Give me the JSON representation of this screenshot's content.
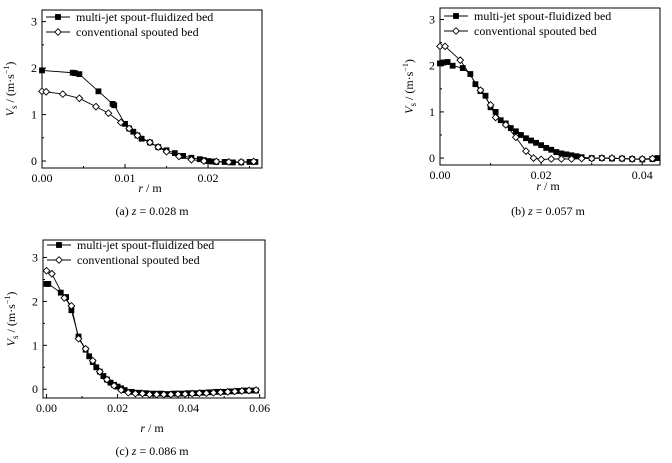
{
  "chart_data": [
    {
      "type": "line",
      "caption_prefix": "(a) ",
      "caption_var": "z",
      "caption_value": " = 0.028 m",
      "xlabel_var": "r",
      "xlabel_unit": " / m",
      "ylabel_var": "V",
      "ylabel_sub": "s",
      "ylabel_unit": " / (m·s",
      "ylabel_exp": "−1",
      "ylabel_close": ")",
      "xlim": [
        0,
        0.0265
      ],
      "ylim": [
        -0.15,
        3.25
      ],
      "xticks": [
        "0.00",
        "0.01",
        "0.02"
      ],
      "xtick_values": [
        0,
        0.01,
        0.02
      ],
      "yticks": [
        "0",
        "1",
        "2",
        "3"
      ],
      "ytick_values": [
        0,
        1,
        2,
        3
      ],
      "legend_position": "top-left",
      "series": [
        {
          "name": "multi-jet spout-fluidized bed",
          "marker": "filled-square",
          "x": [
            0.0,
            0.0037,
            0.004,
            0.0045,
            0.0068,
            0.0085,
            0.0087,
            0.01,
            0.0105,
            0.011,
            0.0115,
            0.012,
            0.013,
            0.014,
            0.015,
            0.016,
            0.017,
            0.018,
            0.019,
            0.0195,
            0.02,
            0.0205,
            0.021,
            0.022,
            0.023,
            0.024,
            0.025,
            0.0257
          ],
          "y": [
            1.95,
            1.9,
            1.89,
            1.87,
            1.5,
            1.23,
            1.2,
            0.8,
            0.7,
            0.63,
            0.55,
            0.48,
            0.4,
            0.3,
            0.23,
            0.17,
            0.11,
            0.07,
            0.04,
            0.02,
            0.0,
            -0.01,
            -0.02,
            -0.02,
            -0.03,
            -0.03,
            -0.02,
            -0.02
          ]
        },
        {
          "name": "conventional spouted bed",
          "marker": "open-diamond",
          "x": [
            0.0,
            0.0005,
            0.0025,
            0.0045,
            0.0065,
            0.008,
            0.0095,
            0.0105,
            0.0115,
            0.013,
            0.014,
            0.015,
            0.0165,
            0.018,
            0.0195,
            0.021,
            0.0225,
            0.024,
            0.0255
          ],
          "y": [
            1.5,
            1.49,
            1.44,
            1.35,
            1.17,
            1.03,
            0.83,
            0.7,
            0.55,
            0.4,
            0.3,
            0.2,
            0.1,
            0.03,
            0.0,
            -0.01,
            -0.02,
            -0.02,
            -0.01
          ]
        }
      ]
    },
    {
      "type": "line",
      "caption_prefix": "(b) ",
      "caption_var": "z",
      "caption_value": " = 0.057 m",
      "xlabel_var": "r",
      "xlabel_unit": " / m",
      "ylabel_var": "V",
      "ylabel_sub": "s",
      "ylabel_unit": " / (m·s",
      "ylabel_exp": "−1",
      "ylabel_close": ")",
      "xlim": [
        0,
        0.0435
      ],
      "ylim": [
        -0.15,
        3.25
      ],
      "xticks": [
        "0.00",
        "0.02",
        "0.04"
      ],
      "xtick_values": [
        0,
        0.02,
        0.04
      ],
      "yticks": [
        "0",
        "1",
        "2",
        "3"
      ],
      "ytick_values": [
        0,
        1,
        2,
        3
      ],
      "legend_position": "top-right",
      "series": [
        {
          "name": "multi-jet spout-fluidized bed",
          "marker": "filled-square",
          "x": [
            0.0,
            0.0007,
            0.0015,
            0.0025,
            0.0045,
            0.006,
            0.007,
            0.008,
            0.009,
            0.01,
            0.011,
            0.012,
            0.013,
            0.014,
            0.015,
            0.016,
            0.017,
            0.018,
            0.019,
            0.02,
            0.021,
            0.022,
            0.023,
            0.024,
            0.025,
            0.026,
            0.027,
            0.028,
            0.03,
            0.032,
            0.034,
            0.036,
            0.038,
            0.04,
            0.042,
            0.043
          ],
          "y": [
            2.05,
            2.07,
            2.08,
            2.0,
            1.95,
            1.82,
            1.6,
            1.45,
            1.35,
            1.1,
            1.0,
            0.82,
            0.75,
            0.65,
            0.58,
            0.5,
            0.43,
            0.38,
            0.33,
            0.28,
            0.22,
            0.18,
            0.13,
            0.1,
            0.08,
            0.06,
            0.04,
            0.02,
            0.0,
            0.0,
            -0.01,
            -0.01,
            -0.02,
            -0.03,
            -0.02,
            0.0
          ]
        },
        {
          "name": "conventional spouted bed",
          "marker": "open-diamond",
          "x": [
            0.0,
            0.001,
            0.004,
            0.008,
            0.01,
            0.011,
            0.013,
            0.015,
            0.017,
            0.0185,
            0.02,
            0.022,
            0.024,
            0.026,
            0.028,
            0.03,
            0.032,
            0.034,
            0.036,
            0.038,
            0.04,
            0.042
          ],
          "y": [
            2.42,
            2.42,
            2.12,
            1.47,
            1.15,
            0.88,
            0.72,
            0.45,
            0.15,
            0.0,
            -0.03,
            -0.02,
            -0.02,
            -0.02,
            -0.01,
            -0.01,
            0.0,
            0.0,
            -0.01,
            -0.02,
            -0.02,
            -0.01
          ]
        }
      ]
    },
    {
      "type": "line",
      "caption_prefix": "(c) ",
      "caption_var": "z",
      "caption_value": " = 0.086 m",
      "xlabel_var": "r",
      "xlabel_unit": " / m",
      "ylabel_var": "V",
      "ylabel_sub": "s",
      "ylabel_unit": " / (m·s",
      "ylabel_exp": "−1",
      "ylabel_close": ")",
      "xlim": [
        -0.001,
        0.0615
      ],
      "ylim": [
        -0.2,
        3.4
      ],
      "xticks": [
        "0.00",
        "0.02",
        "0.04",
        "0.06"
      ],
      "xtick_values": [
        0,
        0.02,
        0.04,
        0.06
      ],
      "yticks": [
        "0",
        "1",
        "2",
        "3"
      ],
      "ytick_values": [
        0,
        1,
        2,
        3
      ],
      "legend_position": "top-left",
      "series": [
        {
          "name": "multi-jet spout-fluidized bed",
          "marker": "filled-square",
          "x": [
            0.0,
            0.0005,
            0.004,
            0.0055,
            0.007,
            0.009,
            0.011,
            0.012,
            0.013,
            0.014,
            0.015,
            0.016,
            0.017,
            0.018,
            0.019,
            0.02,
            0.021,
            0.022,
            0.024,
            0.026,
            0.028,
            0.03,
            0.032,
            0.034,
            0.036,
            0.038,
            0.04,
            0.042,
            0.044,
            0.046,
            0.048,
            0.05,
            0.052,
            0.054,
            0.056,
            0.058,
            0.059
          ],
          "y": [
            2.4,
            2.4,
            2.2,
            2.1,
            1.8,
            1.2,
            0.9,
            0.75,
            0.62,
            0.5,
            0.4,
            0.3,
            0.22,
            0.15,
            0.1,
            0.06,
            0.02,
            -0.02,
            -0.06,
            -0.08,
            -0.09,
            -0.1,
            -0.1,
            -0.11,
            -0.1,
            -0.1,
            -0.09,
            -0.09,
            -0.08,
            -0.07,
            -0.06,
            -0.06,
            -0.05,
            -0.04,
            -0.03,
            -0.03,
            -0.03
          ]
        },
        {
          "name": "conventional spouted bed",
          "marker": "open-diamond",
          "x": [
            0.0,
            0.0015,
            0.005,
            0.007,
            0.009,
            0.011,
            0.013,
            0.015,
            0.017,
            0.019,
            0.021,
            0.023,
            0.025,
            0.027,
            0.029,
            0.031,
            0.033,
            0.035,
            0.037,
            0.039,
            0.041,
            0.043,
            0.045,
            0.047,
            0.049,
            0.051,
            0.053,
            0.055,
            0.057,
            0.059
          ],
          "y": [
            2.7,
            2.63,
            2.08,
            1.9,
            1.15,
            0.92,
            0.65,
            0.4,
            0.22,
            0.08,
            -0.02,
            -0.08,
            -0.1,
            -0.1,
            -0.12,
            -0.12,
            -0.12,
            -0.12,
            -0.11,
            -0.11,
            -0.1,
            -0.09,
            -0.09,
            -0.08,
            -0.07,
            -0.06,
            -0.05,
            -0.04,
            -0.03,
            -0.02
          ]
        }
      ]
    }
  ]
}
